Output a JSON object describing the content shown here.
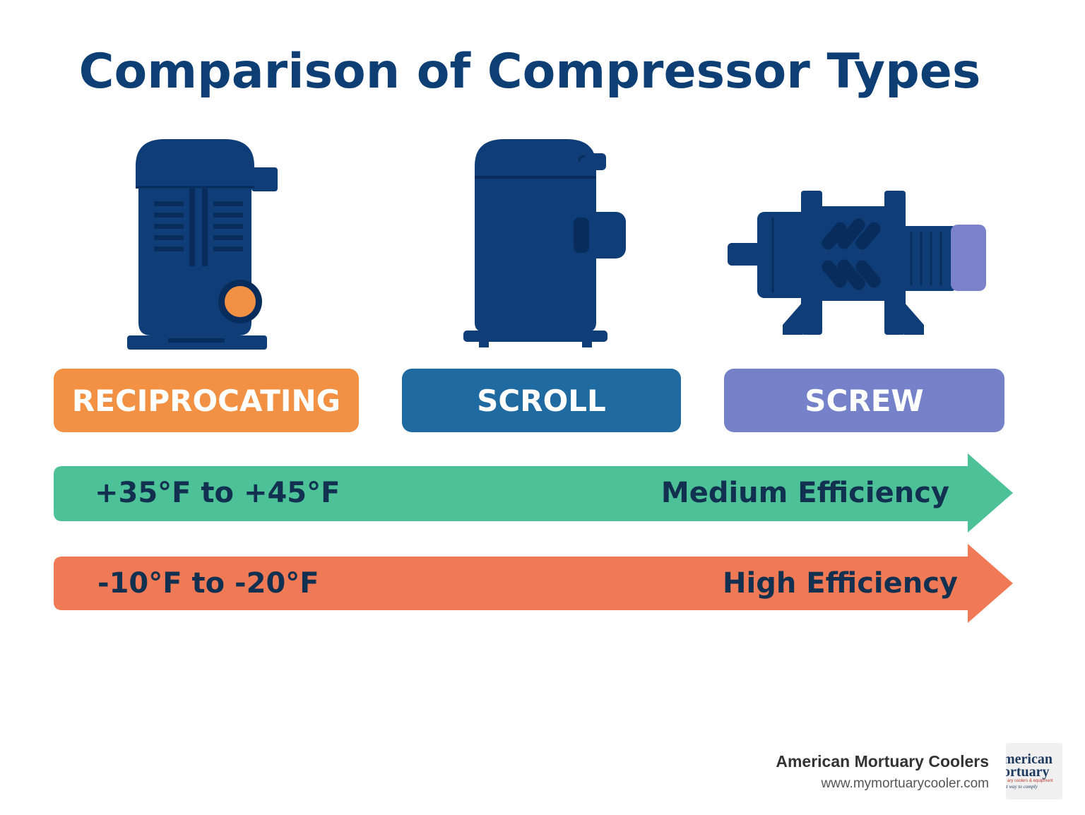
{
  "title": "Comparison of Compressor Types",
  "compressors": [
    {
      "label": "RECIPROCATING",
      "color": "#f29143",
      "icon": "reciprocating-compressor-icon"
    },
    {
      "label": "SCROLL",
      "color": "#1f6aa0",
      "icon": "scroll-compressor-icon"
    },
    {
      "label": "SCREW",
      "color": "#7581c8",
      "icon": "screw-compressor-icon"
    }
  ],
  "ranges": [
    {
      "temperature": "+35°F to +45°F",
      "efficiency": "Medium Efficiency",
      "color": "#4dc197"
    },
    {
      "temperature": "-10°F to -20°F",
      "efficiency": "High Efficiency",
      "color": "#f07a56"
    }
  ],
  "footer": {
    "company": "American Mortuary Coolers",
    "url": "www.mymortuarycooler.com",
    "logo_line1": "merican",
    "logo_line2": "ortuary",
    "logo_line3": "ary coolers & equipment",
    "logo_line4": "st way to comply"
  },
  "colors": {
    "title": "#0e3f74",
    "icon_body": "#0f3d78",
    "icon_dark": "#082d5c",
    "accent_orange": "#f29143",
    "screw_motor": "#7b82cc"
  }
}
